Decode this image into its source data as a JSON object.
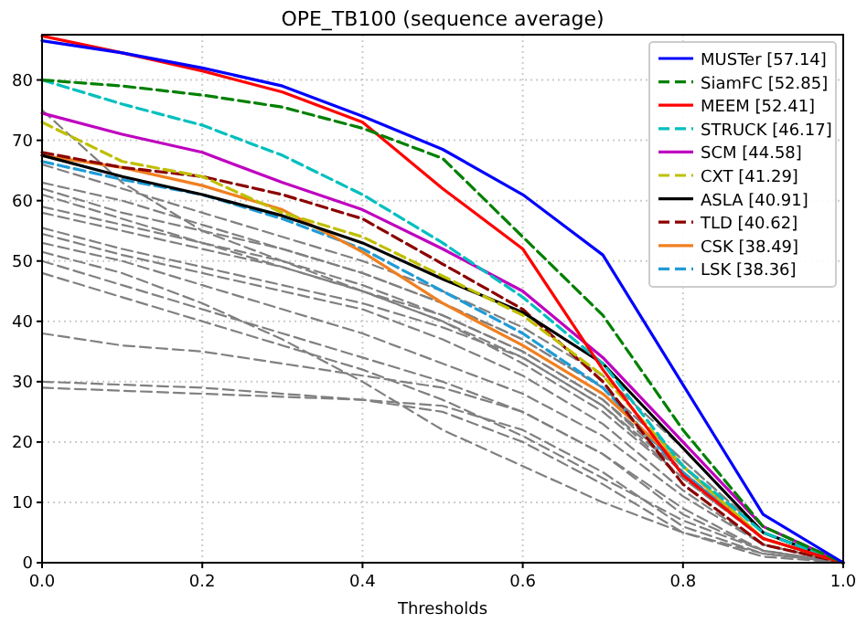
{
  "chart_data": {
    "type": "line",
    "title": "OPE_TB100 (sequence average)",
    "xlabel": "Thresholds",
    "x": [
      0,
      0.1,
      0.2,
      0.3,
      0.4,
      0.5,
      0.6,
      0.7,
      0.8,
      0.9,
      1
    ],
    "xlim": [
      0,
      1
    ],
    "xticks": [
      {
        "value": 0,
        "label": "0.0"
      },
      {
        "value": 0.2,
        "label": "0.2"
      },
      {
        "value": 0.4,
        "label": "0.4"
      },
      {
        "value": 0.6,
        "label": "0.6"
      },
      {
        "value": 0.8,
        "label": "0.8"
      },
      {
        "value": 1,
        "label": "1.0"
      }
    ],
    "ylim": [
      0,
      87.5
    ],
    "yticks": [
      0,
      10,
      20,
      30,
      40,
      50,
      60,
      70,
      80
    ],
    "grid": true,
    "legend": "top right",
    "marker": "none",
    "series": [
      {
        "color": "#808080",
        "line_style": "dashed",
        "values": [
          75,
          63,
          55,
          50,
          45,
          40,
          33,
          25,
          14,
          4,
          0
        ]
      },
      {
        "color": "#808080",
        "line_style": "dashed",
        "values": [
          63,
          60,
          56,
          52,
          48,
          43,
          37,
          29,
          17,
          5,
          0
        ]
      },
      {
        "color": "#808080",
        "line_style": "dashed",
        "values": [
          62,
          58,
          55,
          52,
          48,
          43,
          37,
          29,
          17,
          5,
          0
        ]
      },
      {
        "color": "#808080",
        "line_style": "dashed",
        "values": [
          61,
          57,
          53,
          49,
          45,
          40,
          34,
          26,
          15,
          4,
          0
        ]
      },
      {
        "color": "#808080",
        "line_style": "dashed",
        "values": [
          59,
          56,
          53,
          50,
          46,
          41,
          35,
          27,
          16,
          4,
          0
        ]
      },
      {
        "color": "#808080",
        "line_style": "dashed",
        "values": [
          58,
          55,
          52,
          49,
          45,
          41,
          35,
          27,
          15,
          4,
          0
        ]
      },
      {
        "color": "#808080",
        "line_style": "dashed",
        "values": [
          55.5,
          52,
          49,
          46,
          43,
          39,
          34,
          26,
          14,
          4,
          0
        ]
      },
      {
        "color": "#808080",
        "line_style": "dashed",
        "values": [
          54.5,
          51,
          48,
          45,
          42,
          37,
          31,
          23,
          12,
          3,
          0
        ]
      },
      {
        "color": "#808080",
        "line_style": "dashed",
        "values": [
          53,
          50,
          46,
          42,
          38,
          33,
          28,
          21,
          11,
          3,
          0
        ]
      },
      {
        "color": "#808080",
        "line_style": "dashed",
        "values": [
          51.5,
          48,
          43,
          37,
          30,
          22,
          16,
          10,
          5,
          1.5,
          0
        ]
      },
      {
        "color": "#808080",
        "line_style": "dashed",
        "values": [
          50,
          46,
          42,
          38,
          34,
          30,
          25,
          18,
          9,
          2,
          0
        ]
      },
      {
        "color": "#808080",
        "line_style": "dashed",
        "values": [
          48,
          44,
          40,
          36,
          32,
          27,
          21,
          14,
          7,
          2,
          0
        ]
      },
      {
        "color": "#808080",
        "line_style": "dashed",
        "values": [
          38,
          36,
          35,
          33,
          31,
          29,
          25,
          18,
          8,
          2,
          0
        ]
      },
      {
        "color": "#808080",
        "line_style": "dashed",
        "values": [
          30,
          29.5,
          29,
          28,
          27,
          26,
          22,
          15,
          6,
          1.5,
          0
        ]
      },
      {
        "color": "#808080",
        "line_style": "dashed",
        "values": [
          29,
          28.5,
          28,
          27.5,
          27,
          25,
          20,
          13,
          5,
          1,
          0
        ]
      },
      {
        "color": "#808080",
        "line_style": "dashed",
        "values": [
          66,
          62,
          58,
          54,
          50,
          45,
          39,
          31,
          19,
          5,
          0
        ]
      },
      {
        "name": "LSK [38.36]",
        "color": "#1f9bd6",
        "line_style": "dashed",
        "values": [
          66.5,
          63.5,
          61,
          57,
          52,
          45,
          38,
          29,
          15,
          4,
          0
        ]
      },
      {
        "name": "CSK [38.49]",
        "color": "#f07f20",
        "line_style": "solid",
        "values": [
          67.5,
          65.5,
          62.5,
          58.5,
          51.5,
          43,
          36,
          28,
          16,
          4,
          0
        ]
      },
      {
        "name": "TLD [40.62]",
        "color": "#8b0000",
        "line_style": "dashed",
        "values": [
          68,
          65.5,
          64,
          61,
          57,
          49.5,
          42,
          30,
          13,
          3,
          0
        ]
      },
      {
        "name": "ASLA [40.91]",
        "color": "#000000",
        "line_style": "solid",
        "values": [
          67.5,
          64,
          61,
          57.5,
          53,
          47,
          41.5,
          33,
          19,
          5,
          0
        ]
      },
      {
        "name": "CXT [41.29]",
        "color": "#bfbf00",
        "line_style": "dashed",
        "values": [
          73,
          66.5,
          64,
          58,
          54,
          47.5,
          41,
          31,
          16,
          4,
          0
        ]
      },
      {
        "name": "SCM [44.58]",
        "color": "#bf00bf",
        "line_style": "solid",
        "values": [
          74.5,
          71,
          68,
          63,
          58.5,
          52,
          45,
          34,
          20,
          6,
          0
        ]
      },
      {
        "name": "STRUCK [46.17]",
        "color": "#00bfbf",
        "line_style": "dashed",
        "values": [
          80,
          76,
          72.5,
          67.5,
          61,
          53,
          44,
          33,
          16,
          5,
          0
        ]
      },
      {
        "name": "MEEM [52.41]",
        "color": "#ff0000",
        "line_style": "solid",
        "values": [
          87.3,
          84.5,
          81.5,
          78,
          73,
          62,
          52,
          32,
          14.5,
          4,
          0
        ]
      },
      {
        "name": "SiamFC [52.85]",
        "color": "#008000",
        "line_style": "dashed",
        "values": [
          80,
          79,
          77.5,
          75.5,
          72,
          67,
          54,
          41,
          22,
          6,
          0
        ]
      },
      {
        "name": "MUSTer [57.14]",
        "color": "#0000ff",
        "line_style": "solid",
        "values": [
          86.5,
          84.5,
          82,
          79,
          74,
          68.5,
          61,
          51,
          29.5,
          8,
          0
        ]
      }
    ]
  }
}
